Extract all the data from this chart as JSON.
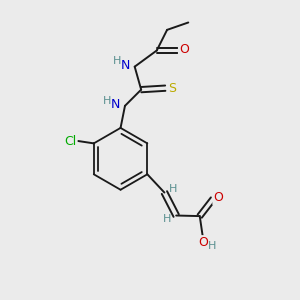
{
  "background_color": "#ebebeb",
  "bond_color": "#1a1a1a",
  "atom_colors": {
    "N": "#0000cc",
    "O": "#cc0000",
    "S": "#bbaa00",
    "Cl": "#00aa00",
    "H": "#5a9090",
    "C": "#1a1a1a"
  },
  "figsize": [
    3.0,
    3.0
  ],
  "dpi": 100
}
